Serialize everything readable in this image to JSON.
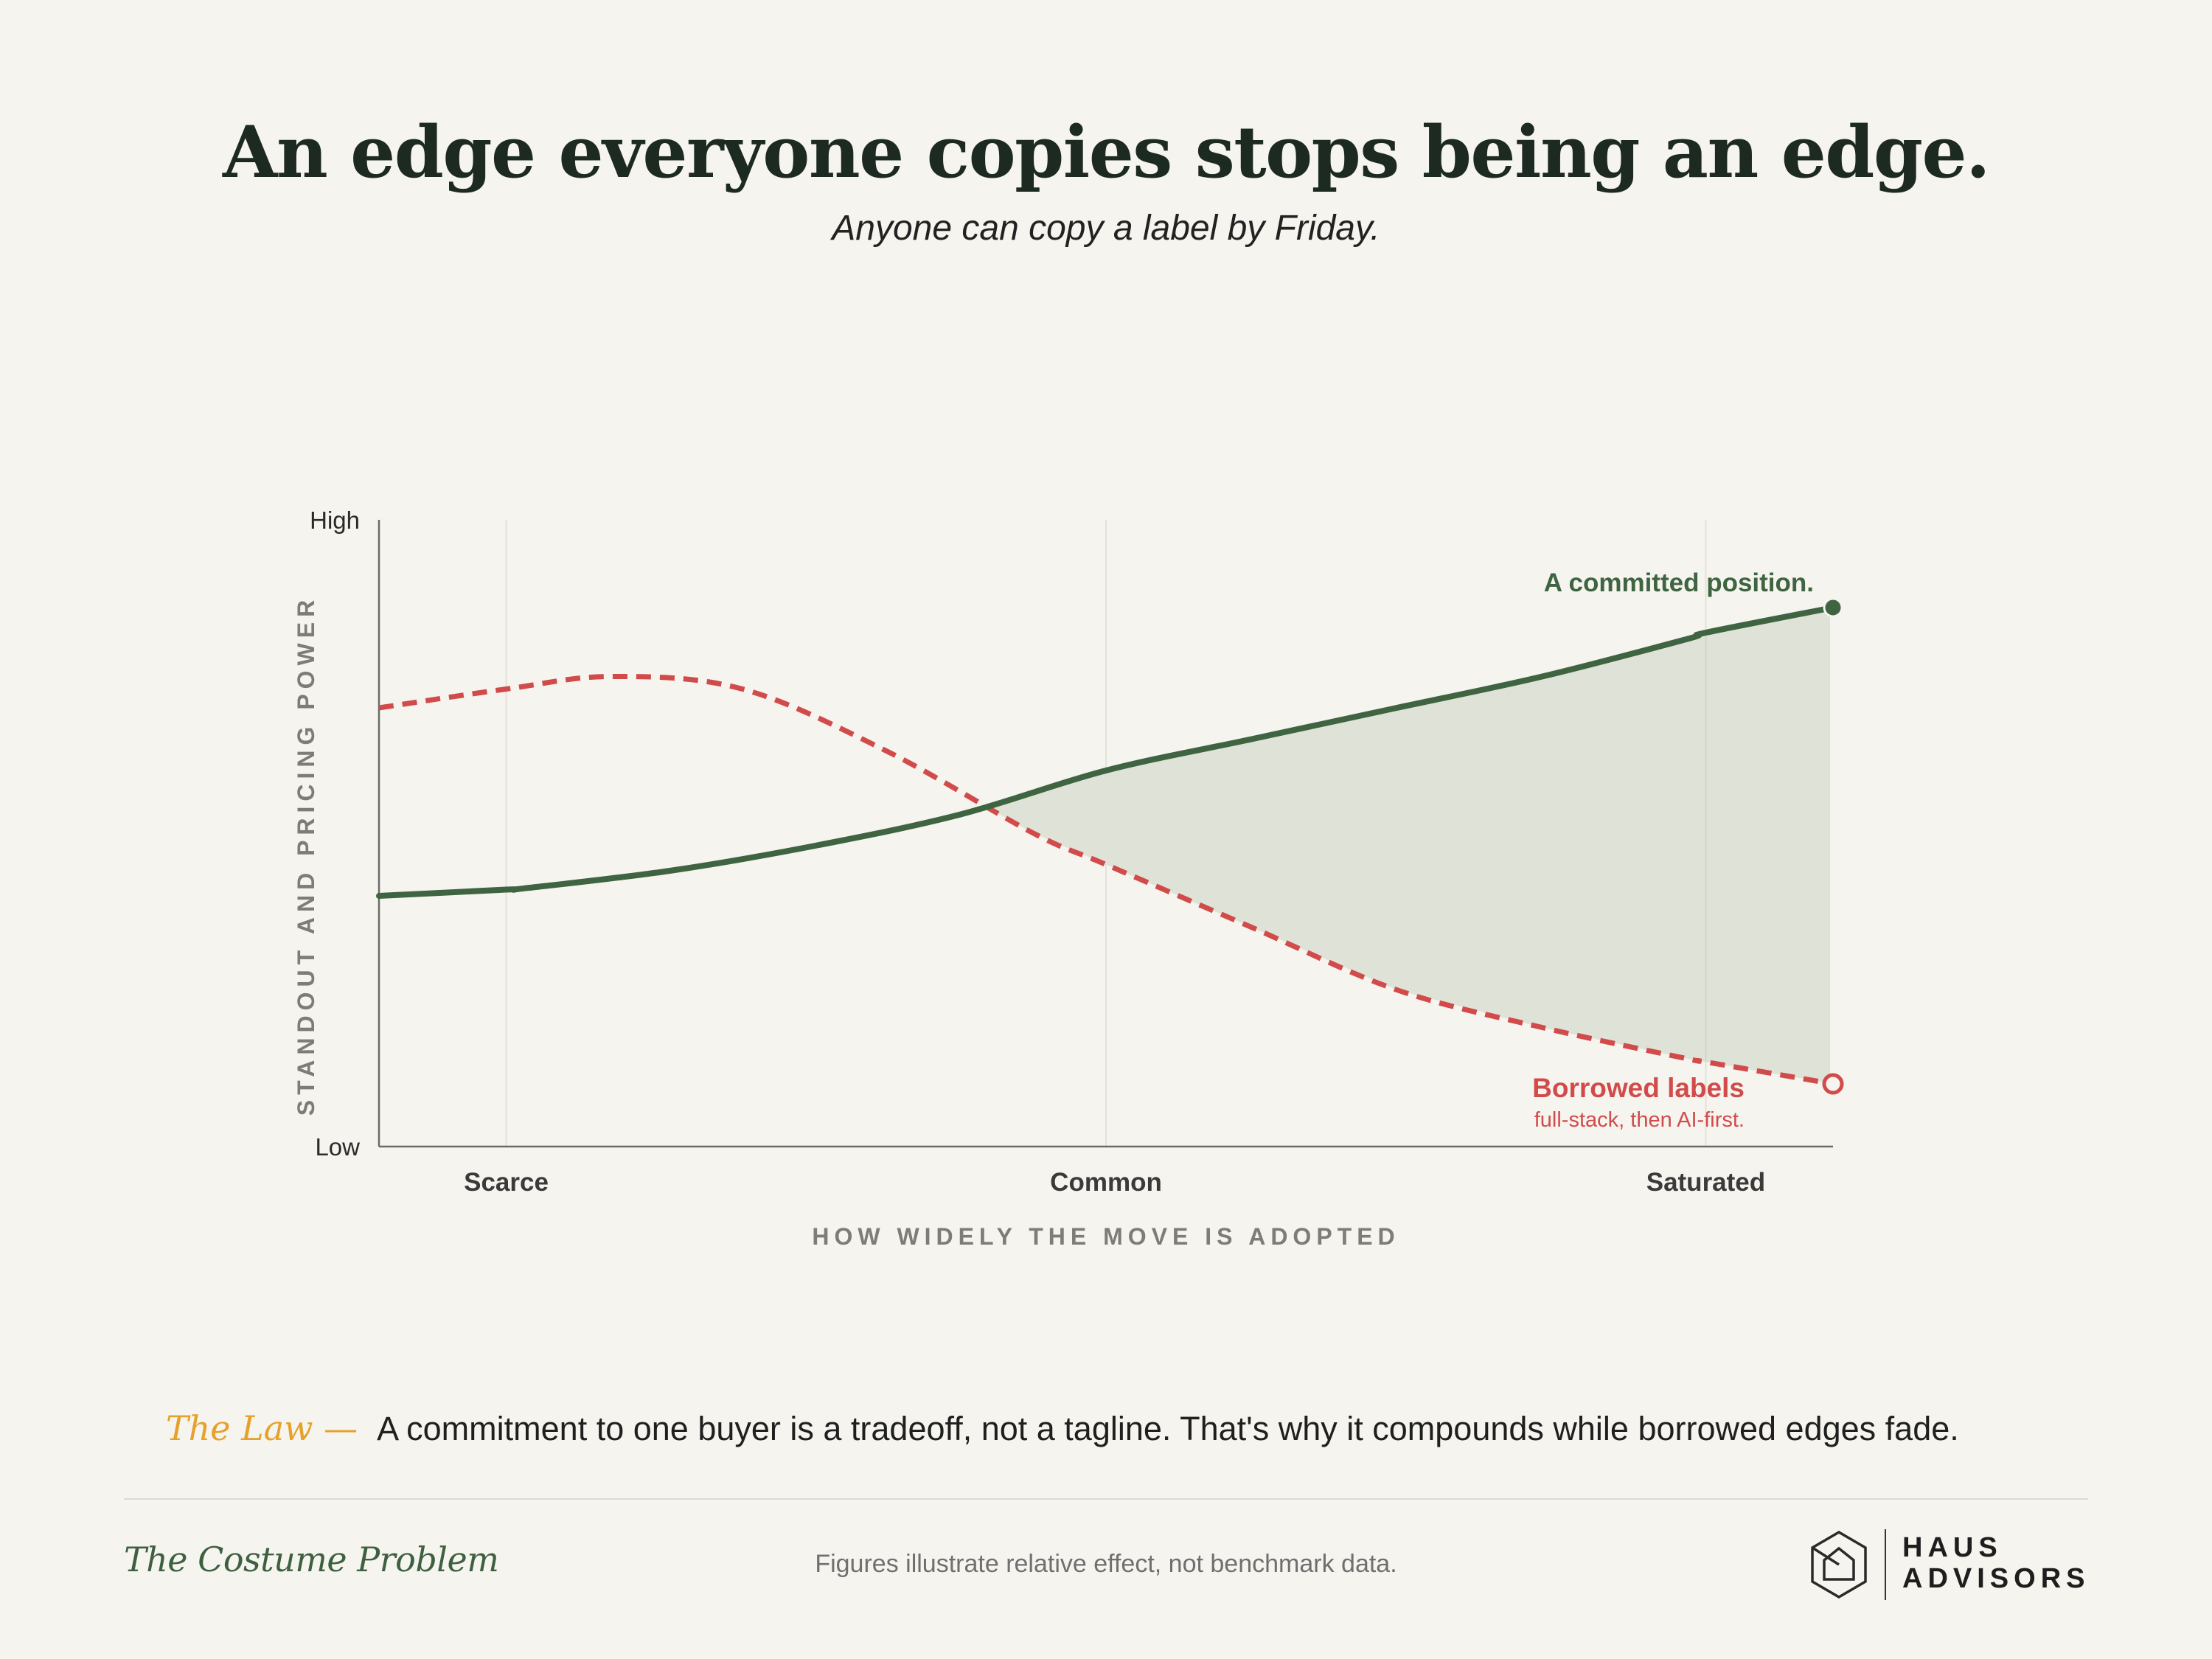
{
  "header": {
    "title": "An edge everyone copies stops being an edge.",
    "subtitle": "Anyone can copy a label by Friday."
  },
  "chart_data": {
    "type": "line",
    "ylabel": "STANDOUT AND PRICING POWER",
    "xlabel": "HOW WIDELY THE MOVE IS ADOPTED",
    "y_ticks": [
      "High",
      "Low"
    ],
    "x_ticks": [
      "Scarce",
      "Common",
      "Saturated"
    ],
    "xlim": [
      0,
      1.0
    ],
    "ylim": [
      0,
      1.0
    ],
    "grid": "vertical",
    "shaded_region": "between series after crossover",
    "series": [
      {
        "name": "A committed position.",
        "color": "#3f6441",
        "style": "solid",
        "end_marker": "filled-circle",
        "x": [
          0.0,
          0.0875,
          0.1,
          0.2,
          0.3,
          0.4,
          0.5,
          0.6,
          0.7,
          0.8,
          0.9,
          0.9125,
          1.0
        ],
        "y": [
          0.4,
          0.41,
          0.412,
          0.44,
          0.48,
          0.53,
          0.6,
          0.65,
          0.7,
          0.75,
          0.81,
          0.82,
          0.86
        ]
      },
      {
        "name": "Borrowed labels",
        "note": "full-stack, then AI-first.",
        "color": "#d24b4b",
        "style": "dashed",
        "end_marker": "hollow-circle",
        "x": [
          0.0,
          0.0875,
          0.16,
          0.25,
          0.35,
          0.45,
          0.5,
          0.6,
          0.7,
          0.8,
          0.9,
          0.9125,
          1.0
        ],
        "y": [
          0.7,
          0.73,
          0.75,
          0.73,
          0.63,
          0.5,
          0.45,
          0.35,
          0.25,
          0.19,
          0.14,
          0.135,
          0.1
        ]
      }
    ]
  },
  "law": {
    "label": "The Law —",
    "text": "A commitment to one buyer is a tradeoff, not a tagline. That's why it compounds while borrowed edges fade."
  },
  "footer": {
    "series_title": "The Costume Problem",
    "note": "Figures illustrate relative effect, not benchmark data.",
    "brand_line1": "HAUS",
    "brand_line2": "ADVISORS",
    "brand_icon": "house-hexagon-logo-icon"
  }
}
